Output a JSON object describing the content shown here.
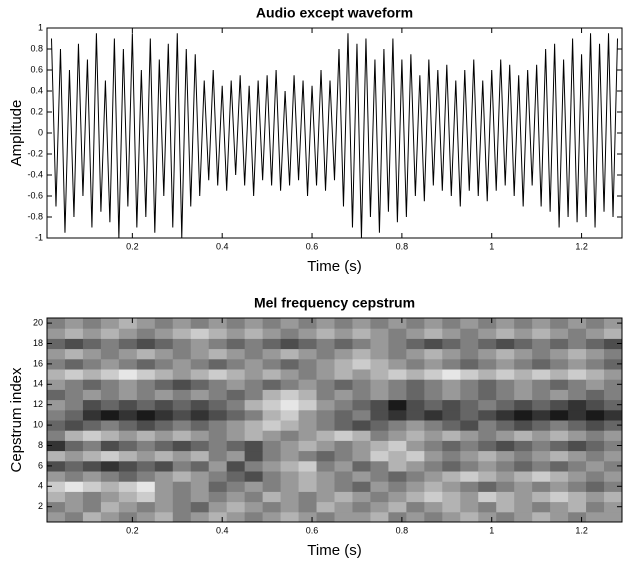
{
  "chart_data": [
    {
      "type": "line",
      "title": "Audio except waveform",
      "xlabel": "Time (s)",
      "ylabel": "Amplitude",
      "color": "#000000",
      "xlim": [
        0.01,
        1.29
      ],
      "ylim": [
        -1,
        1
      ],
      "xticks": [
        0.2,
        0.4,
        0.6,
        0.8,
        1,
        1.2
      ],
      "yticks": [
        -1,
        -0.8,
        -0.6,
        -0.4,
        -0.2,
        0,
        0.2,
        0.4,
        0.6,
        0.8,
        1
      ],
      "x": [
        0.02,
        0.03,
        0.04,
        0.05,
        0.06,
        0.07,
        0.08,
        0.09,
        0.1,
        0.11,
        0.12,
        0.13,
        0.14,
        0.15,
        0.16,
        0.17,
        0.18,
        0.19,
        0.2,
        0.21,
        0.22,
        0.23,
        0.24,
        0.25,
        0.26,
        0.27,
        0.28,
        0.29,
        0.3,
        0.31,
        0.32,
        0.33,
        0.34,
        0.35,
        0.36,
        0.37,
        0.38,
        0.39,
        0.4,
        0.41,
        0.42,
        0.43,
        0.44,
        0.45,
        0.46,
        0.47,
        0.48,
        0.49,
        0.5,
        0.51,
        0.52,
        0.53,
        0.54,
        0.55,
        0.56,
        0.57,
        0.58,
        0.59,
        0.6,
        0.61,
        0.62,
        0.63,
        0.64,
        0.65,
        0.66,
        0.67,
        0.68,
        0.69,
        0.7,
        0.71,
        0.72,
        0.73,
        0.74,
        0.75,
        0.76,
        0.77,
        0.78,
        0.79,
        0.8,
        0.81,
        0.82,
        0.83,
        0.84,
        0.85,
        0.86,
        0.87,
        0.88,
        0.89,
        0.9,
        0.91,
        0.92,
        0.93,
        0.94,
        0.95,
        0.96,
        0.97,
        0.98,
        0.99,
        1,
        1.01,
        1.02,
        1.03,
        1.04,
        1.05,
        1.06,
        1.07,
        1.08,
        1.09,
        1.1,
        1.11,
        1.12,
        1.13,
        1.14,
        1.15,
        1.16,
        1.17,
        1.18,
        1.19,
        1.2,
        1.21,
        1.22,
        1.23,
        1.24,
        1.25,
        1.26,
        1.27,
        1.28
      ],
      "values": [
        0.9,
        -0.7,
        0.8,
        -0.95,
        0.6,
        -0.8,
        0.85,
        -0.6,
        0.7,
        -0.9,
        0.95,
        -0.75,
        0.5,
        -0.85,
        0.9,
        -1,
        0.8,
        -0.7,
        0.95,
        -0.9,
        0.6,
        -0.8,
        0.9,
        -0.95,
        0.7,
        -0.6,
        0.85,
        -0.9,
        0.95,
        -1,
        0.8,
        -0.7,
        0.75,
        -0.6,
        0.5,
        -0.45,
        0.6,
        -0.5,
        0.45,
        -0.55,
        0.5,
        -0.4,
        0.55,
        -0.5,
        0.45,
        -0.6,
        0.5,
        -0.45,
        0.55,
        -0.5,
        0.6,
        -0.55,
        0.4,
        -0.5,
        0.55,
        -0.45,
        0.5,
        -0.6,
        0.45,
        -0.5,
        0.6,
        -0.55,
        0.5,
        -0.45,
        0.8,
        -0.7,
        0.95,
        -0.9,
        0.85,
        -1,
        0.9,
        -0.8,
        0.7,
        -0.95,
        0.8,
        -0.75,
        0.9,
        -0.85,
        0.7,
        -0.8,
        0.75,
        -0.6,
        0.55,
        -0.65,
        0.7,
        -0.5,
        0.6,
        -0.55,
        0.65,
        -0.6,
        0.5,
        -0.7,
        0.6,
        -0.55,
        0.7,
        -0.6,
        0.5,
        -0.65,
        0.6,
        -0.55,
        0.7,
        -0.5,
        0.65,
        -0.6,
        0.55,
        -0.7,
        0.6,
        -0.5,
        0.65,
        -0.7,
        0.8,
        -0.75,
        0.85,
        -0.9,
        0.7,
        -0.8,
        0.9,
        -0.85,
        0.75,
        -0.8,
        0.95,
        -0.9,
        0.85,
        -0.75,
        0.95,
        -0.8,
        0.9
      ]
    },
    {
      "type": "heatmap",
      "title": "Mel frequency cepstrum",
      "xlabel": "Time (s)",
      "ylabel": "Cepstrum index",
      "xlim": [
        0.01,
        1.29
      ],
      "ylim": [
        0.5,
        20.5
      ],
      "xticks": [
        0.2,
        0.4,
        0.6,
        0.8,
        1,
        1.2
      ],
      "yticks": [
        2,
        4,
        6,
        8,
        10,
        12,
        14,
        16,
        18,
        20
      ],
      "x": [
        0.03,
        0.07,
        0.11,
        0.15,
        0.19,
        0.23,
        0.27,
        0.31,
        0.35,
        0.39,
        0.43,
        0.47,
        0.51,
        0.55,
        0.59,
        0.63,
        0.67,
        0.71,
        0.75,
        0.79,
        0.83,
        0.87,
        0.91,
        0.95,
        0.99,
        1.03,
        1.07,
        1.11,
        1.15,
        1.19,
        1.23,
        1.27
      ],
      "y": [
        1,
        2,
        3,
        4,
        5,
        6,
        7,
        8,
        9,
        10,
        11,
        12,
        13,
        14,
        15,
        16,
        17,
        18,
        19,
        20
      ],
      "z": [
        [
          0.6,
          0.5,
          0.7,
          0.6,
          0.5,
          0.6,
          0.7,
          0.5,
          0.6,
          0.7,
          0.6,
          0.5,
          0.6,
          0.7,
          0.6,
          0.5,
          0.6,
          0.6,
          0.7,
          0.5,
          0.6,
          0.5,
          0.6,
          0.7,
          0.6,
          0.5,
          0.6,
          0.7,
          0.6,
          0.5,
          0.6,
          0.6
        ],
        [
          0.5,
          0.6,
          0.5,
          0.7,
          0.6,
          0.5,
          0.6,
          0.5,
          0.4,
          0.6,
          0.7,
          0.6,
          0.5,
          0.6,
          0.5,
          0.7,
          0.6,
          0.5,
          0.6,
          0.7,
          0.5,
          0.6,
          0.7,
          0.6,
          0.5,
          0.7,
          0.6,
          0.5,
          0.6,
          0.7,
          0.5,
          0.6
        ],
        [
          0.7,
          0.6,
          0.5,
          0.6,
          0.7,
          0.8,
          0.6,
          0.5,
          0.6,
          0.5,
          0.6,
          0.5,
          0.7,
          0.6,
          0.5,
          0.6,
          0.7,
          0.6,
          0.5,
          0.6,
          0.7,
          0.8,
          0.7,
          0.6,
          0.8,
          0.7,
          0.6,
          0.7,
          0.8,
          0.7,
          0.6,
          0.7
        ],
        [
          0.8,
          0.9,
          0.8,
          0.7,
          0.8,
          0.9,
          0.6,
          0.5,
          0.6,
          0.4,
          0.5,
          0.6,
          0.5,
          0.6,
          0.7,
          0.6,
          0.5,
          0.4,
          0.6,
          0.5,
          0.6,
          0.7,
          0.6,
          0.5,
          0.4,
          0.5,
          0.6,
          0.5,
          0.6,
          0.5,
          0.4,
          0.5
        ],
        [
          0.6,
          0.5,
          0.6,
          0.5,
          0.4,
          0.5,
          0.6,
          0.7,
          0.6,
          0.5,
          0.4,
          0.3,
          0.5,
          0.6,
          0.7,
          0.6,
          0.5,
          0.6,
          0.5,
          0.4,
          0.5,
          0.6,
          0.7,
          0.8,
          0.7,
          0.6,
          0.7,
          0.8,
          0.7,
          0.6,
          0.5,
          0.6
        ],
        [
          0.3,
          0.4,
          0.3,
          0.2,
          0.3,
          0.4,
          0.3,
          0.5,
          0.4,
          0.6,
          0.3,
          0.5,
          0.6,
          0.7,
          0.8,
          0.5,
          0.6,
          0.4,
          0.5,
          0.7,
          0.6,
          0.5,
          0.4,
          0.5,
          0.6,
          0.5,
          0.4,
          0.5,
          0.4,
          0.5,
          0.6,
          0.5
        ],
        [
          0.7,
          0.6,
          0.7,
          0.8,
          0.7,
          0.6,
          0.7,
          0.6,
          0.7,
          0.5,
          0.6,
          0.3,
          0.5,
          0.6,
          0.5,
          0.4,
          0.5,
          0.6,
          0.8,
          0.7,
          0.8,
          0.6,
          0.5,
          0.6,
          0.7,
          0.6,
          0.5,
          0.6,
          0.7,
          0.6,
          0.5,
          0.6
        ],
        [
          0.2,
          0.4,
          0.5,
          0.3,
          0.4,
          0.5,
          0.4,
          0.3,
          0.4,
          0.5,
          0.4,
          0.3,
          0.5,
          0.6,
          0.7,
          0.6,
          0.5,
          0.6,
          0.7,
          0.8,
          0.6,
          0.5,
          0.4,
          0.5,
          0.4,
          0.3,
          0.4,
          0.5,
          0.4,
          0.3,
          0.4,
          0.5
        ],
        [
          0.5,
          0.7,
          0.8,
          0.7,
          0.6,
          0.7,
          0.6,
          0.7,
          0.6,
          0.5,
          0.6,
          0.7,
          0.6,
          0.5,
          0.6,
          0.7,
          0.8,
          0.7,
          0.5,
          0.6,
          0.7,
          0.6,
          0.7,
          0.6,
          0.5,
          0.6,
          0.7,
          0.6,
          0.7,
          0.6,
          0.5,
          0.6
        ],
        [
          0.4,
          0.3,
          0.4,
          0.5,
          0.4,
          0.3,
          0.4,
          0.5,
          0.4,
          0.5,
          0.6,
          0.7,
          0.8,
          0.7,
          0.6,
          0.5,
          0.4,
          0.3,
          0.4,
          0.5,
          0.6,
          0.5,
          0.4,
          0.3,
          0.5,
          0.4,
          0.3,
          0.4,
          0.5,
          0.4,
          0.3,
          0.4
        ],
        [
          0.5,
          0.4,
          0.2,
          0.1,
          0.2,
          0.1,
          0.2,
          0.3,
          0.2,
          0.3,
          0.4,
          0.5,
          0.7,
          0.8,
          0.6,
          0.5,
          0.4,
          0.5,
          0.3,
          0.2,
          0.3,
          0.2,
          0.3,
          0.4,
          0.3,
          0.2,
          0.1,
          0.2,
          0.1,
          0.2,
          0.1,
          0.2
        ],
        [
          0.6,
          0.5,
          0.3,
          0.4,
          0.3,
          0.4,
          0.3,
          0.4,
          0.3,
          0.4,
          0.5,
          0.7,
          0.8,
          0.9,
          0.8,
          0.6,
          0.5,
          0.4,
          0.3,
          0.1,
          0.3,
          0.4,
          0.3,
          0.4,
          0.5,
          0.4,
          0.3,
          0.4,
          0.3,
          0.2,
          0.3,
          0.4
        ],
        [
          0.4,
          0.5,
          0.6,
          0.5,
          0.6,
          0.5,
          0.6,
          0.5,
          0.6,
          0.5,
          0.4,
          0.5,
          0.7,
          0.8,
          0.7,
          0.5,
          0.6,
          0.5,
          0.6,
          0.5,
          0.4,
          0.5,
          0.6,
          0.5,
          0.4,
          0.5,
          0.6,
          0.5,
          0.6,
          0.5,
          0.4,
          0.5
        ],
        [
          0.6,
          0.5,
          0.4,
          0.5,
          0.6,
          0.5,
          0.4,
          0.3,
          0.4,
          0.5,
          0.6,
          0.5,
          0.4,
          0.5,
          0.6,
          0.5,
          0.4,
          0.5,
          0.6,
          0.5,
          0.4,
          0.5,
          0.6,
          0.5,
          0.4,
          0.5,
          0.6,
          0.5,
          0.4,
          0.5,
          0.6,
          0.5
        ],
        [
          0.7,
          0.8,
          0.7,
          0.8,
          0.9,
          0.8,
          0.7,
          0.6,
          0.7,
          0.8,
          0.7,
          0.6,
          0.7,
          0.6,
          0.5,
          0.6,
          0.7,
          0.6,
          0.7,
          0.8,
          0.7,
          0.8,
          0.9,
          0.8,
          0.7,
          0.8,
          0.7,
          0.8,
          0.7,
          0.8,
          0.7,
          0.6
        ],
        [
          0.5,
          0.4,
          0.5,
          0.6,
          0.5,
          0.4,
          0.5,
          0.6,
          0.5,
          0.4,
          0.5,
          0.6,
          0.5,
          0.4,
          0.5,
          0.6,
          0.7,
          0.8,
          0.7,
          0.6,
          0.5,
          0.6,
          0.5,
          0.4,
          0.5,
          0.6,
          0.5,
          0.4,
          0.5,
          0.6,
          0.5,
          0.4
        ],
        [
          0.6,
          0.7,
          0.6,
          0.5,
          0.6,
          0.7,
          0.6,
          0.5,
          0.6,
          0.7,
          0.6,
          0.5,
          0.6,
          0.7,
          0.6,
          0.5,
          0.6,
          0.7,
          0.6,
          0.5,
          0.6,
          0.7,
          0.6,
          0.5,
          0.6,
          0.7,
          0.6,
          0.5,
          0.6,
          0.7,
          0.6,
          0.5
        ],
        [
          0.4,
          0.3,
          0.4,
          0.5,
          0.4,
          0.3,
          0.4,
          0.5,
          0.6,
          0.5,
          0.4,
          0.5,
          0.4,
          0.3,
          0.4,
          0.5,
          0.4,
          0.5,
          0.6,
          0.5,
          0.4,
          0.3,
          0.4,
          0.5,
          0.4,
          0.3,
          0.4,
          0.5,
          0.4,
          0.5,
          0.4,
          0.3
        ],
        [
          0.6,
          0.7,
          0.6,
          0.7,
          0.6,
          0.5,
          0.6,
          0.7,
          0.8,
          0.7,
          0.6,
          0.7,
          0.6,
          0.5,
          0.6,
          0.7,
          0.6,
          0.7,
          0.6,
          0.5,
          0.6,
          0.7,
          0.6,
          0.5,
          0.6,
          0.7,
          0.6,
          0.7,
          0.6,
          0.5,
          0.6,
          0.7
        ],
        [
          0.5,
          0.6,
          0.5,
          0.6,
          0.7,
          0.6,
          0.5,
          0.6,
          0.5,
          0.6,
          0.5,
          0.6,
          0.5,
          0.6,
          0.5,
          0.6,
          0.5,
          0.6,
          0.5,
          0.6,
          0.5,
          0.6,
          0.5,
          0.6,
          0.5,
          0.6,
          0.5,
          0.6,
          0.5,
          0.6,
          0.5,
          0.6
        ]
      ]
    }
  ]
}
